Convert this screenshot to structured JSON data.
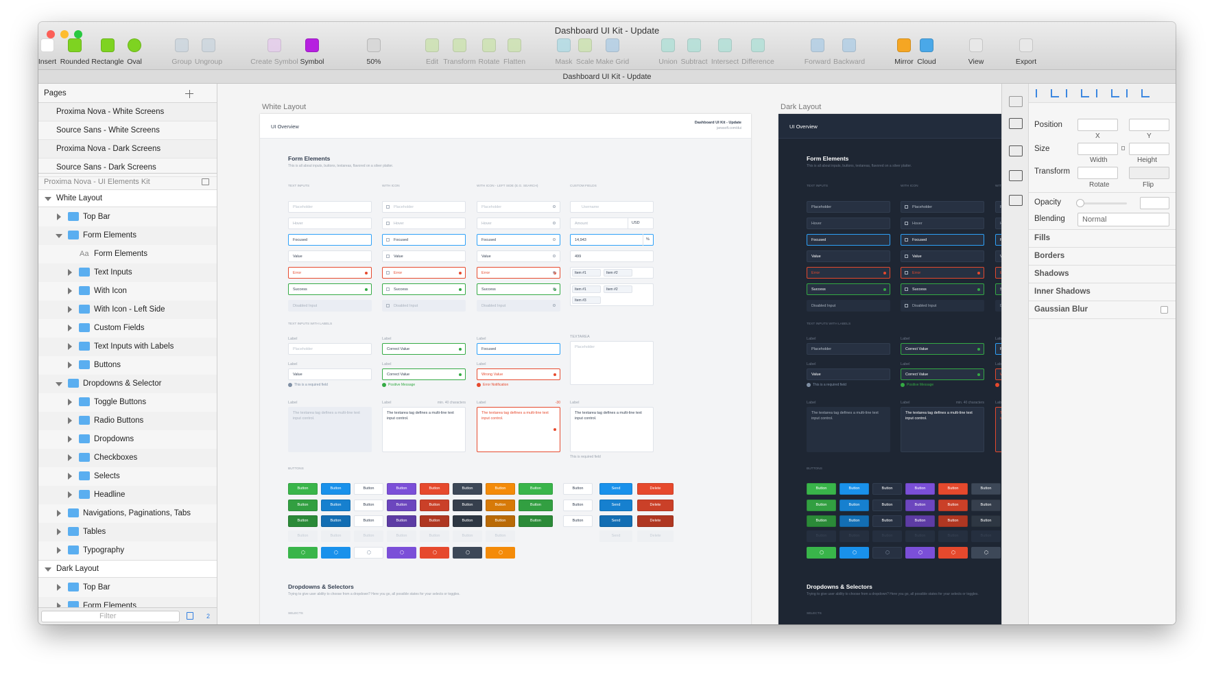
{
  "window": {
    "title": "Dashboard UI Kit - Update",
    "tab": "Dashboard UI Kit - Update"
  },
  "toolbar": [
    {
      "label": "Insert",
      "color": "#fff",
      "enabled": true
    },
    {
      "label": "Rounded",
      "color": "#7ed321",
      "enabled": true
    },
    {
      "label": "Rectangle",
      "color": "#7ed321",
      "enabled": true
    },
    {
      "label": "Oval",
      "color": "#7ed321",
      "enabled": true
    },
    {
      "label": "Group",
      "color": "#c8d4de",
      "enabled": false
    },
    {
      "label": "Ungroup",
      "color": "#c8d4de",
      "enabled": false
    },
    {
      "label": "Create Symbol",
      "color": "#e6c9ee",
      "enabled": false
    },
    {
      "label": "Symbol",
      "color": "#b620e0",
      "enabled": true
    },
    {
      "label": "50%",
      "color": "#d8d8d8",
      "enabled": true
    },
    {
      "label": "Edit",
      "color": "#c9e3a8",
      "enabled": false
    },
    {
      "label": "Transform",
      "color": "#c9e3a8",
      "enabled": false
    },
    {
      "label": "Rotate",
      "color": "#c9e3a8",
      "enabled": false
    },
    {
      "label": "Flatten",
      "color": "#c9e3a8",
      "enabled": false
    },
    {
      "label": "Mask",
      "color": "#a9dbe6",
      "enabled": false
    },
    {
      "label": "Scale",
      "color": "#c9e3a8",
      "enabled": false
    },
    {
      "label": "Make Grid",
      "color": "#a9cbe6",
      "enabled": false
    },
    {
      "label": "Union",
      "color": "#a9e0d6",
      "enabled": false
    },
    {
      "label": "Subtract",
      "color": "#a9e0d6",
      "enabled": false
    },
    {
      "label": "Intersect",
      "color": "#a9e0d6",
      "enabled": false
    },
    {
      "label": "Difference",
      "color": "#a9e0d6",
      "enabled": false
    },
    {
      "label": "Forward",
      "color": "#a9cbe6",
      "enabled": false
    },
    {
      "label": "Backward",
      "color": "#a9cbe6",
      "enabled": false
    },
    {
      "label": "Mirror",
      "color": "#f5a623",
      "enabled": true
    },
    {
      "label": "Cloud",
      "color": "#4aa8e8",
      "enabled": true
    },
    {
      "label": "View",
      "color": "#e8e8e8",
      "enabled": true
    },
    {
      "label": "Export",
      "color": "#e8e8e8",
      "enabled": true
    }
  ],
  "sidebar": {
    "pages_title": "Pages",
    "pages": [
      "Proxima Nova - White Screens",
      "Source Sans - White Screens",
      "Proxima Nova - Dark Screens",
      "Source Sans - Dark Screens"
    ],
    "current_page": "Proxima Nova - UI Elements Kit",
    "layers": [
      {
        "label": "White Layout",
        "depth": 0,
        "open": true
      },
      {
        "label": "Top Bar",
        "depth": 1,
        "open": false
      },
      {
        "label": "Form Elements",
        "depth": 1,
        "open": true
      },
      {
        "label": "Form Elements",
        "depth": 2,
        "icon": "Aa"
      },
      {
        "label": "Text Inputs",
        "depth": 2,
        "open": false
      },
      {
        "label": "With Icon",
        "depth": 2,
        "open": false
      },
      {
        "label": "With Icon - Left Side",
        "depth": 2,
        "open": false
      },
      {
        "label": "Custom Fields",
        "depth": 2,
        "open": false
      },
      {
        "label": "Text Inputs with Labels",
        "depth": 2,
        "open": false
      },
      {
        "label": "Buttons",
        "depth": 2,
        "open": false
      },
      {
        "label": "Dropdowns & Selector",
        "depth": 1,
        "open": true
      },
      {
        "label": "Toggle Buttons",
        "depth": 2,
        "open": false
      },
      {
        "label": "Radio Buttons",
        "depth": 2,
        "open": false
      },
      {
        "label": "Dropdowns",
        "depth": 2,
        "open": false
      },
      {
        "label": "Checkboxes",
        "depth": 2,
        "open": false
      },
      {
        "label": "Selects",
        "depth": 2,
        "open": false
      },
      {
        "label": "Headline",
        "depth": 2,
        "open": false
      },
      {
        "label": "Navigations, Paginations, Tabs",
        "depth": 1,
        "open": false
      },
      {
        "label": "Tables",
        "depth": 1,
        "open": false
      },
      {
        "label": "Typography",
        "depth": 1,
        "open": false
      },
      {
        "label": "Dark Layout",
        "depth": 0,
        "open": true
      },
      {
        "label": "Top Bar",
        "depth": 1,
        "open": false
      },
      {
        "label": "Form Elements",
        "depth": 1,
        "open": false
      }
    ],
    "filter": "Filter",
    "count": "2"
  },
  "artboards": [
    {
      "name": "White Layout",
      "theme": "light"
    },
    {
      "name": "Dark Layout",
      "theme": "dark"
    }
  ],
  "artboard": {
    "header": "UI Overview",
    "doc_title": "Dashboard UI Kit - Update",
    "doc_url": "janssoft.com/dui",
    "form_title": "Form Elements",
    "form_sub": "This is all about inputs, buttons, textareas, flavored on a silver platter.",
    "field_states": [
      "placeholder",
      "hover",
      "focused",
      "value",
      "error",
      "success",
      "disabled"
    ],
    "columns": [
      {
        "head": "TEXT INPUTS",
        "fields": [
          "Placeholder",
          "Hover",
          "Focused",
          "Value",
          "Error",
          "Success",
          "Disabled Input"
        ]
      },
      {
        "head": "WITH ICON",
        "fields": [
          "Placeholder",
          "Hover",
          "Focused",
          "Value",
          "Error",
          "Success",
          "Disabled Input"
        ]
      },
      {
        "head": "WITH ICON - LEFT SIDE (E.G. SEARCH)",
        "fields": [
          "Placeholder",
          "Hover",
          "Focused",
          "Value",
          "Error",
          "Success",
          "Disabled Input"
        ]
      }
    ],
    "custom": {
      "head": "CUSTOM FIELDS",
      "fields": [
        {
          "text": "Username"
        },
        {
          "text": "Amount",
          "addon": "USD"
        },
        {
          "text": "14,943",
          "addon": "%"
        },
        {
          "text": "499"
        }
      ],
      "tags": [
        [
          "Item #1",
          "Item #2"
        ],
        [
          "Item #1",
          "Item #2",
          "Item #3"
        ]
      ]
    },
    "labeled": {
      "head": "TEXT INPUTS WITH LABELS",
      "columns": [
        [
          {
            "label": "Label",
            "text": "Placeholder",
            "state": "placeholder"
          },
          {
            "label": "Label",
            "text": "Value",
            "state": "value",
            "note": "This is a required field",
            "note_state": "info"
          },
          {
            "label": "Label",
            "textarea": "The textarea tag defines a multi-line text input control.",
            "state": "disabled"
          }
        ],
        [
          {
            "label": "Label",
            "text": "Correct Value",
            "state": "success"
          },
          {
            "label": "Label",
            "text": "Correct Value",
            "state": "success",
            "note": "Positive Message",
            "note_state": "success"
          },
          {
            "label": "Label",
            "hint": "min. 40 characters",
            "textarea": "The textarea tag defines a multi-line text input control.",
            "state": "value"
          }
        ],
        [
          {
            "label": "Label",
            "text": "Focused",
            "state": "focused"
          },
          {
            "label": "Label",
            "text": "Wrong Value",
            "state": "error",
            "note": "Error Notification",
            "note_state": "error"
          },
          {
            "label": "Label",
            "hint": "-30",
            "textarea": "The textarea tag defines a multi-line text input control.",
            "state": "error"
          }
        ],
        [
          {
            "label": "TEXTAREA",
            "textarea": "Placeholder",
            "state": "placeholder"
          },
          {
            "label": "Label",
            "textarea": "The textarea tag defines a multi-line text input control.",
            "state": "value",
            "note": "This is required field",
            "note_state": "plain"
          }
        ]
      ]
    },
    "buttons": {
      "head": "BUTTONS",
      "items": [
        {
          "label": "Button",
          "color": "#39b54a"
        },
        {
          "label": "Button",
          "color": "#1991eb"
        },
        {
          "label": "Button",
          "color": "#ffffff"
        },
        {
          "label": "Button",
          "color": "#7b4fd8"
        },
        {
          "label": "Button",
          "color": "#e6492d"
        },
        {
          "label": "Button",
          "color": "#3d4858"
        },
        {
          "label": "Button",
          "color": "#f48b09"
        },
        {
          "label": "Button",
          "color": "#39b54a"
        },
        {
          "label": "Button",
          "color": "#ffffff"
        },
        {
          "label": "Send",
          "color": "#1991eb"
        },
        {
          "label": "Delete",
          "color": "#e6492d"
        }
      ]
    },
    "dropdowns_title": "Dropdowns & Selectors",
    "dropdowns_sub": "Trying to give user ability to choose from a dropdown? Here you go, all possible states for your selects or toggles.",
    "selects": "SELECTS"
  },
  "inspector": {
    "position": "Position",
    "x": "X",
    "y": "Y",
    "size": "Size",
    "width": "Width",
    "height": "Height",
    "transform": "Transform",
    "rotate": "Rotate",
    "flip": "Flip",
    "opacity": "Opacity",
    "blending": "Blending",
    "blend_mode": "Normal",
    "sections": [
      "Fills",
      "Borders",
      "Shadows",
      "Inner Shadows",
      "Gaussian Blur"
    ]
  }
}
